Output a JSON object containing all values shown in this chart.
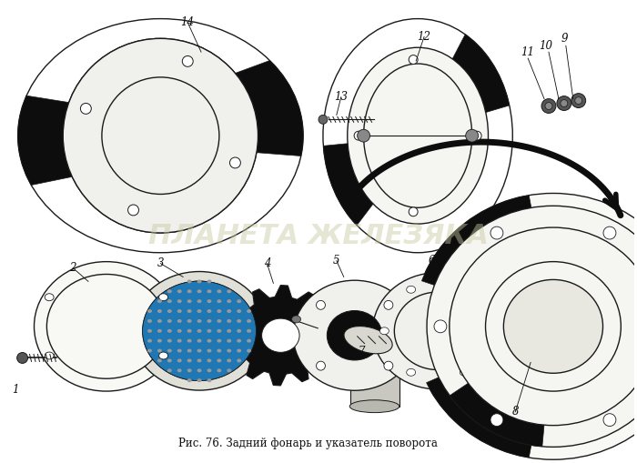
{
  "bg_color": "#ffffff",
  "title": "Рис. 76. Задний фонарь и указатель поворота",
  "watermark": "ПЛАНЕТА ЖЕЛЕЗЯКА",
  "line_color": "#1a1a1a",
  "dark_color": "#0d0d0d",
  "fill_color": "#f0f0ec",
  "mid_color": "#666666"
}
